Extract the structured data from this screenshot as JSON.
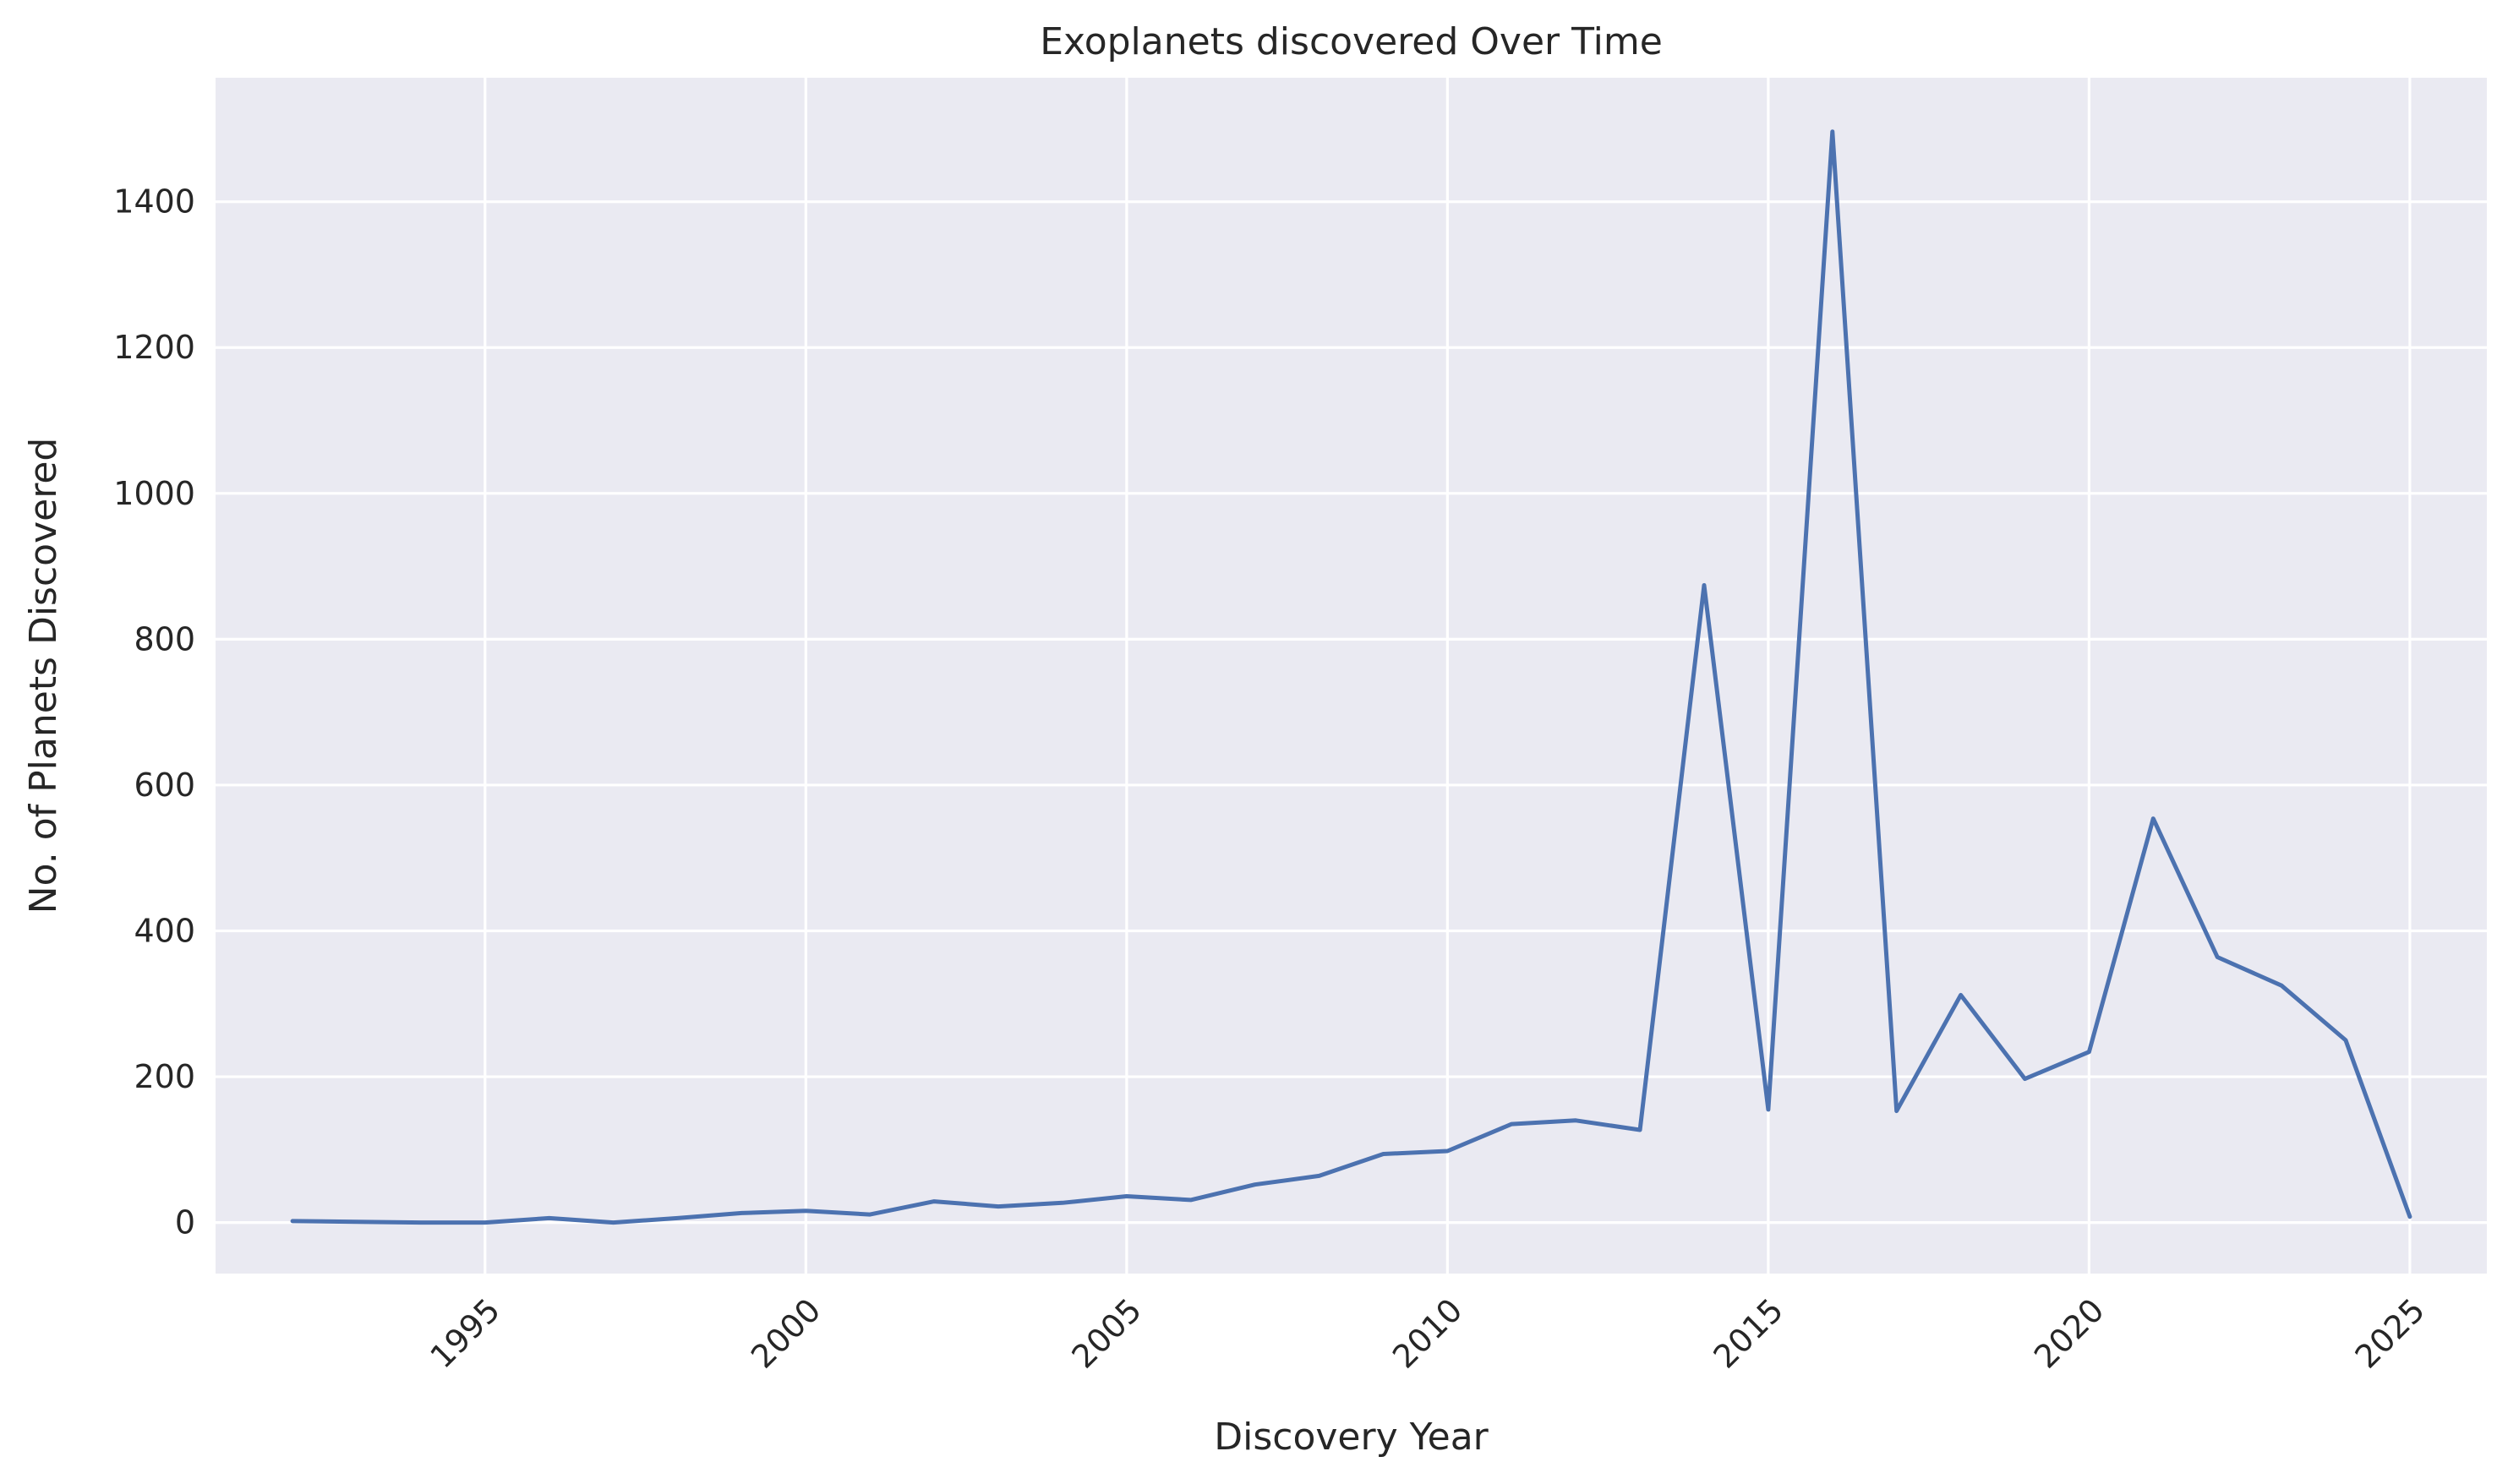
{
  "chart_data": {
    "type": "line",
    "title": "Exoplanets discovered Over Time",
    "xlabel": "Discovery Year",
    "ylabel": "No. of Planets Discovered",
    "xlim": [
      1990.8,
      2026.2
    ],
    "ylim": [
      -70,
      1570
    ],
    "xticks": [
      1995,
      2000,
      2005,
      2010,
      2015,
      2020,
      2025
    ],
    "xtick_rotation_deg": 45,
    "yticks": [
      0,
      200,
      400,
      600,
      800,
      1000,
      1200,
      1400
    ],
    "grid": true,
    "legend": "none",
    "colors": {
      "background": "#EAEAF2",
      "grid": "#FFFFFF",
      "line": "#4C72B0",
      "text": "#262626"
    },
    "series": [
      {
        "x": [
          1992,
          1993,
          1994,
          1995,
          1996,
          1997,
          1998,
          1999,
          2000,
          2001,
          2002,
          2003,
          2004,
          2005,
          2006,
          2007,
          2008,
          2009,
          2010,
          2011,
          2012,
          2013,
          2014,
          2015,
          2016,
          2017,
          2018,
          2019,
          2020,
          2021,
          2022,
          2023,
          2024,
          2025
        ],
        "values": [
          2,
          1,
          0,
          0,
          6,
          0,
          6,
          13,
          16,
          11,
          29,
          22,
          27,
          36,
          31,
          52,
          64,
          94,
          98,
          135,
          140,
          127,
          874,
          155,
          1496,
          153,
          312,
          197,
          234,
          554,
          364,
          325,
          250,
          8
        ]
      }
    ]
  }
}
